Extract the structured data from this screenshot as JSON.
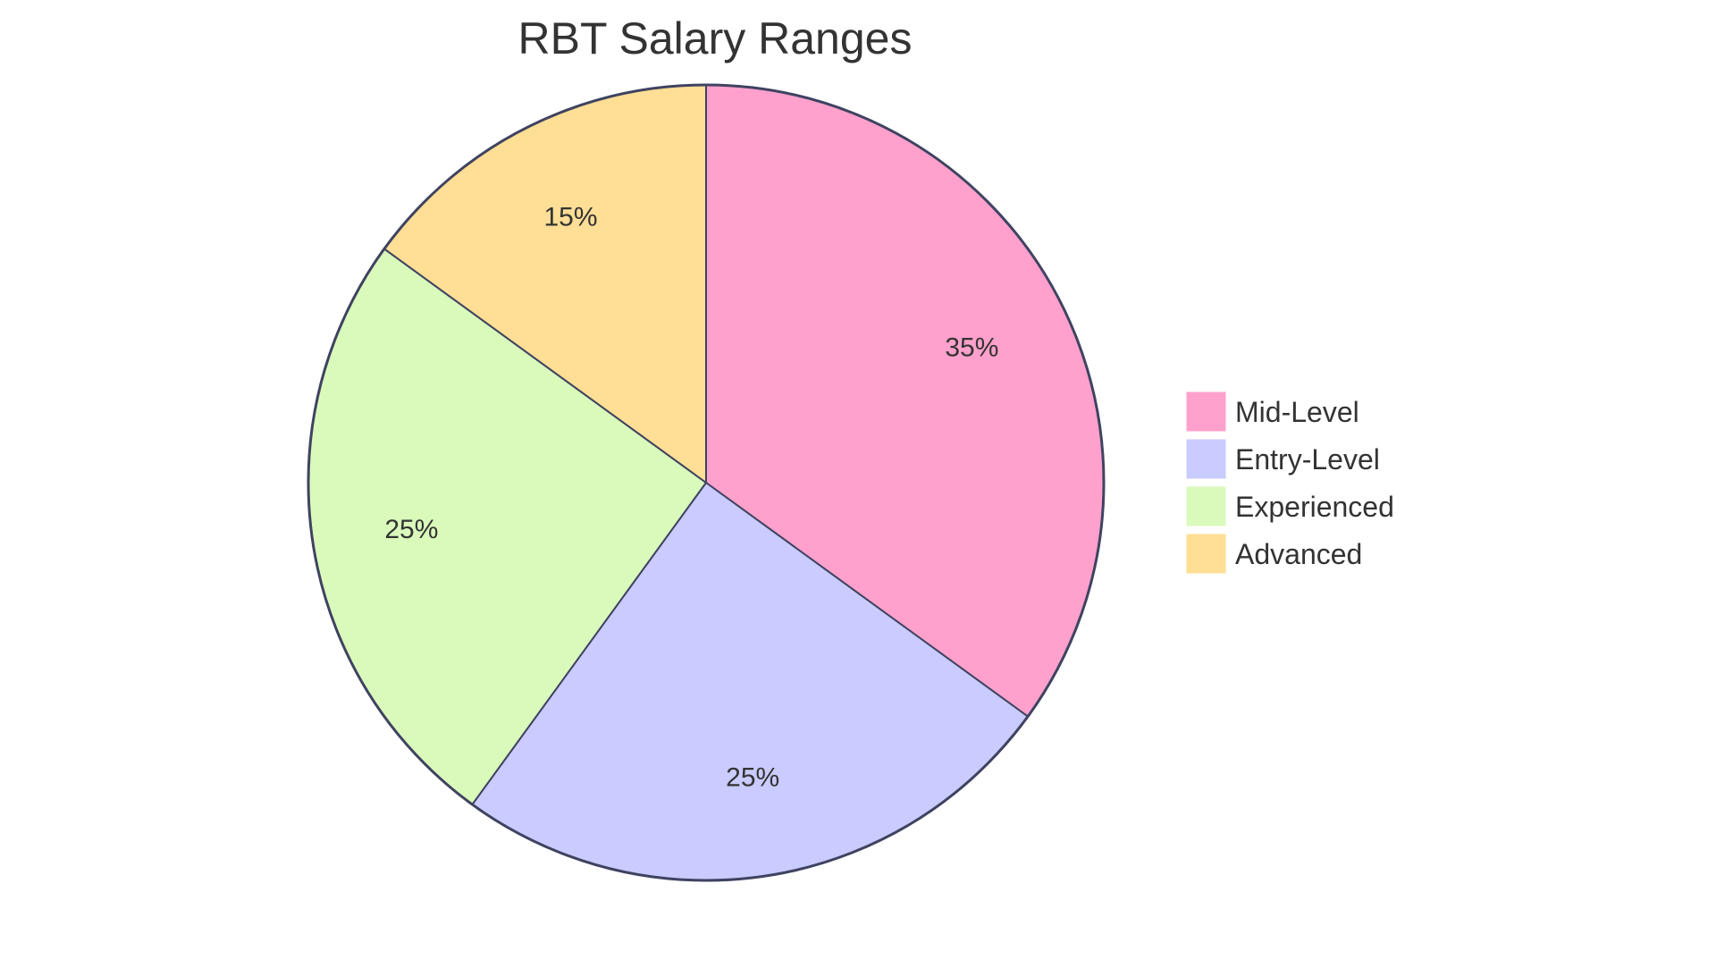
{
  "chart_data": {
    "type": "pie",
    "title": "RBT Salary Ranges",
    "categories": [
      "Mid-Level",
      "Entry-Level",
      "Experienced",
      "Advanced"
    ],
    "values": [
      35,
      25,
      25,
      15
    ],
    "labels": [
      "35%",
      "25%",
      "25%",
      "15%"
    ],
    "colors": [
      "#FFA1CC",
      "#CACBFF",
      "#DAFABC",
      "#FFDE95"
    ],
    "stroke_color": "#3F4360",
    "legend_position": "right",
    "start_angle": "12 o'clock, clockwise"
  }
}
